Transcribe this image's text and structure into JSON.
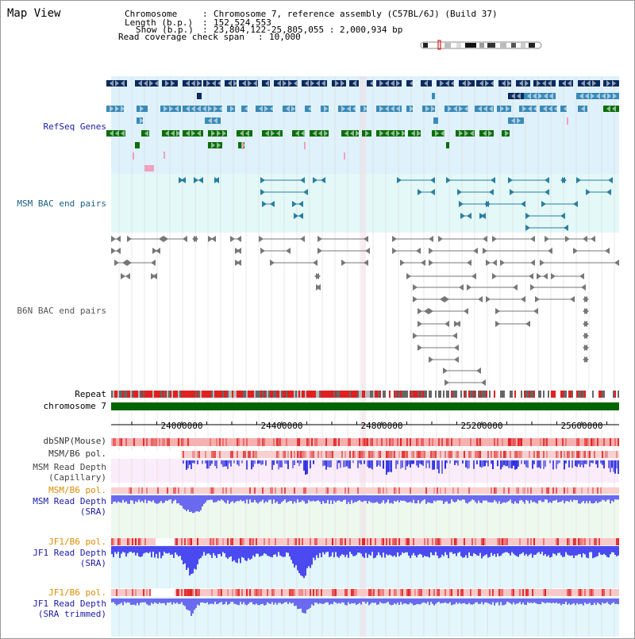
{
  "title": "Map View",
  "info": {
    "chromosome_key": "Chromosome",
    "chromosome_val": "Chromosome 7, reference assembly (C57BL/6J) (Build 37)",
    "length_key": "Length (b.p.)",
    "length_val": "152,524,553",
    "show_key": "Show (b.p.)",
    "show_val": "23,804,122-25,805,055 : 2,000,934 bp",
    "coverage_key": "Read coverage check span",
    "coverage_val": "10,000"
  },
  "tracks": {
    "refseq": "RefSeq Genes",
    "msm_bac": "MSM BAC end pairs",
    "b6n_bac": "B6N BAC end pairs",
    "repeat": "Repeat",
    "chromosome": "chromosome 7",
    "dbsnp": "dbSNP(Mouse)",
    "msm_b6_pol": "MSM/B6 pol.",
    "msm_depth_cap_1": "MSM Read Depth",
    "msm_depth_cap_2": "(Capillary)",
    "msm_b6_pol2": "MSM/B6 pol.",
    "msm_depth_sra_1": "MSM Read Depth",
    "msm_depth_sra_2": "(SRA)",
    "jf1_b6_pol": "JF1/B6 pol.",
    "jf1_depth_sra_1": "JF1 Read Depth",
    "jf1_depth_sra_2": "(SRA)",
    "jf1_b6_pol2": "JF1/B6 pol.",
    "jf1_depth_trim_1": "JF1 Read Depth",
    "jf1_depth_trim_2": "(SRA trimmed)"
  },
  "axis": {
    "ticks": [
      "24000000",
      "24400000",
      "24800000",
      "25200000",
      "25600000"
    ]
  },
  "colors": {
    "refseq_label": "#1a1aa6",
    "msm_label": "#1a6080",
    "b6n_label": "#555555",
    "pol_label": "#e08a00",
    "depth_label": "#1a1aa6",
    "navy": "#0a2a5e",
    "teal": "#3a8ab8",
    "green": "#0a6e0a",
    "chromosome_bar": "#006400",
    "repeat_red": "#e02020",
    "depth_blue": "#3030e8"
  }
}
